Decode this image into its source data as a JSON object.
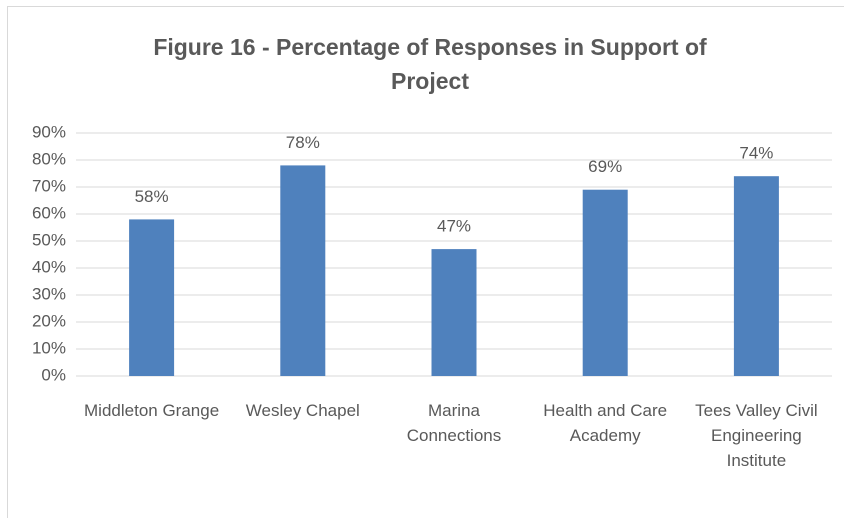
{
  "chart_data": {
    "type": "bar",
    "title": "Figure 16 - Percentage of Responses in Support of Project",
    "categories": [
      "Middleton Grange",
      "Wesley Chapel",
      "Marina Connections",
      "Health and Care Academy",
      "Tees Valley Civil Engineering Institute"
    ],
    "values": [
      58,
      78,
      47,
      69,
      74
    ],
    "value_labels": [
      "58%",
      "78%",
      "47%",
      "69%",
      "74%"
    ],
    "color": "#4f81bd",
    "ylim": [
      0,
      90
    ],
    "yticks": [
      {
        "value": 0,
        "label": "0%"
      },
      {
        "value": 10,
        "label": "10%"
      },
      {
        "value": 20,
        "label": "20%"
      },
      {
        "value": 30,
        "label": "30%"
      },
      {
        "value": 40,
        "label": "40%"
      },
      {
        "value": 50,
        "label": "50%"
      },
      {
        "value": 60,
        "label": "60%"
      },
      {
        "value": 70,
        "label": "70%"
      },
      {
        "value": 80,
        "label": "80%"
      },
      {
        "value": 90,
        "label": "90%"
      }
    ],
    "grid": true
  }
}
